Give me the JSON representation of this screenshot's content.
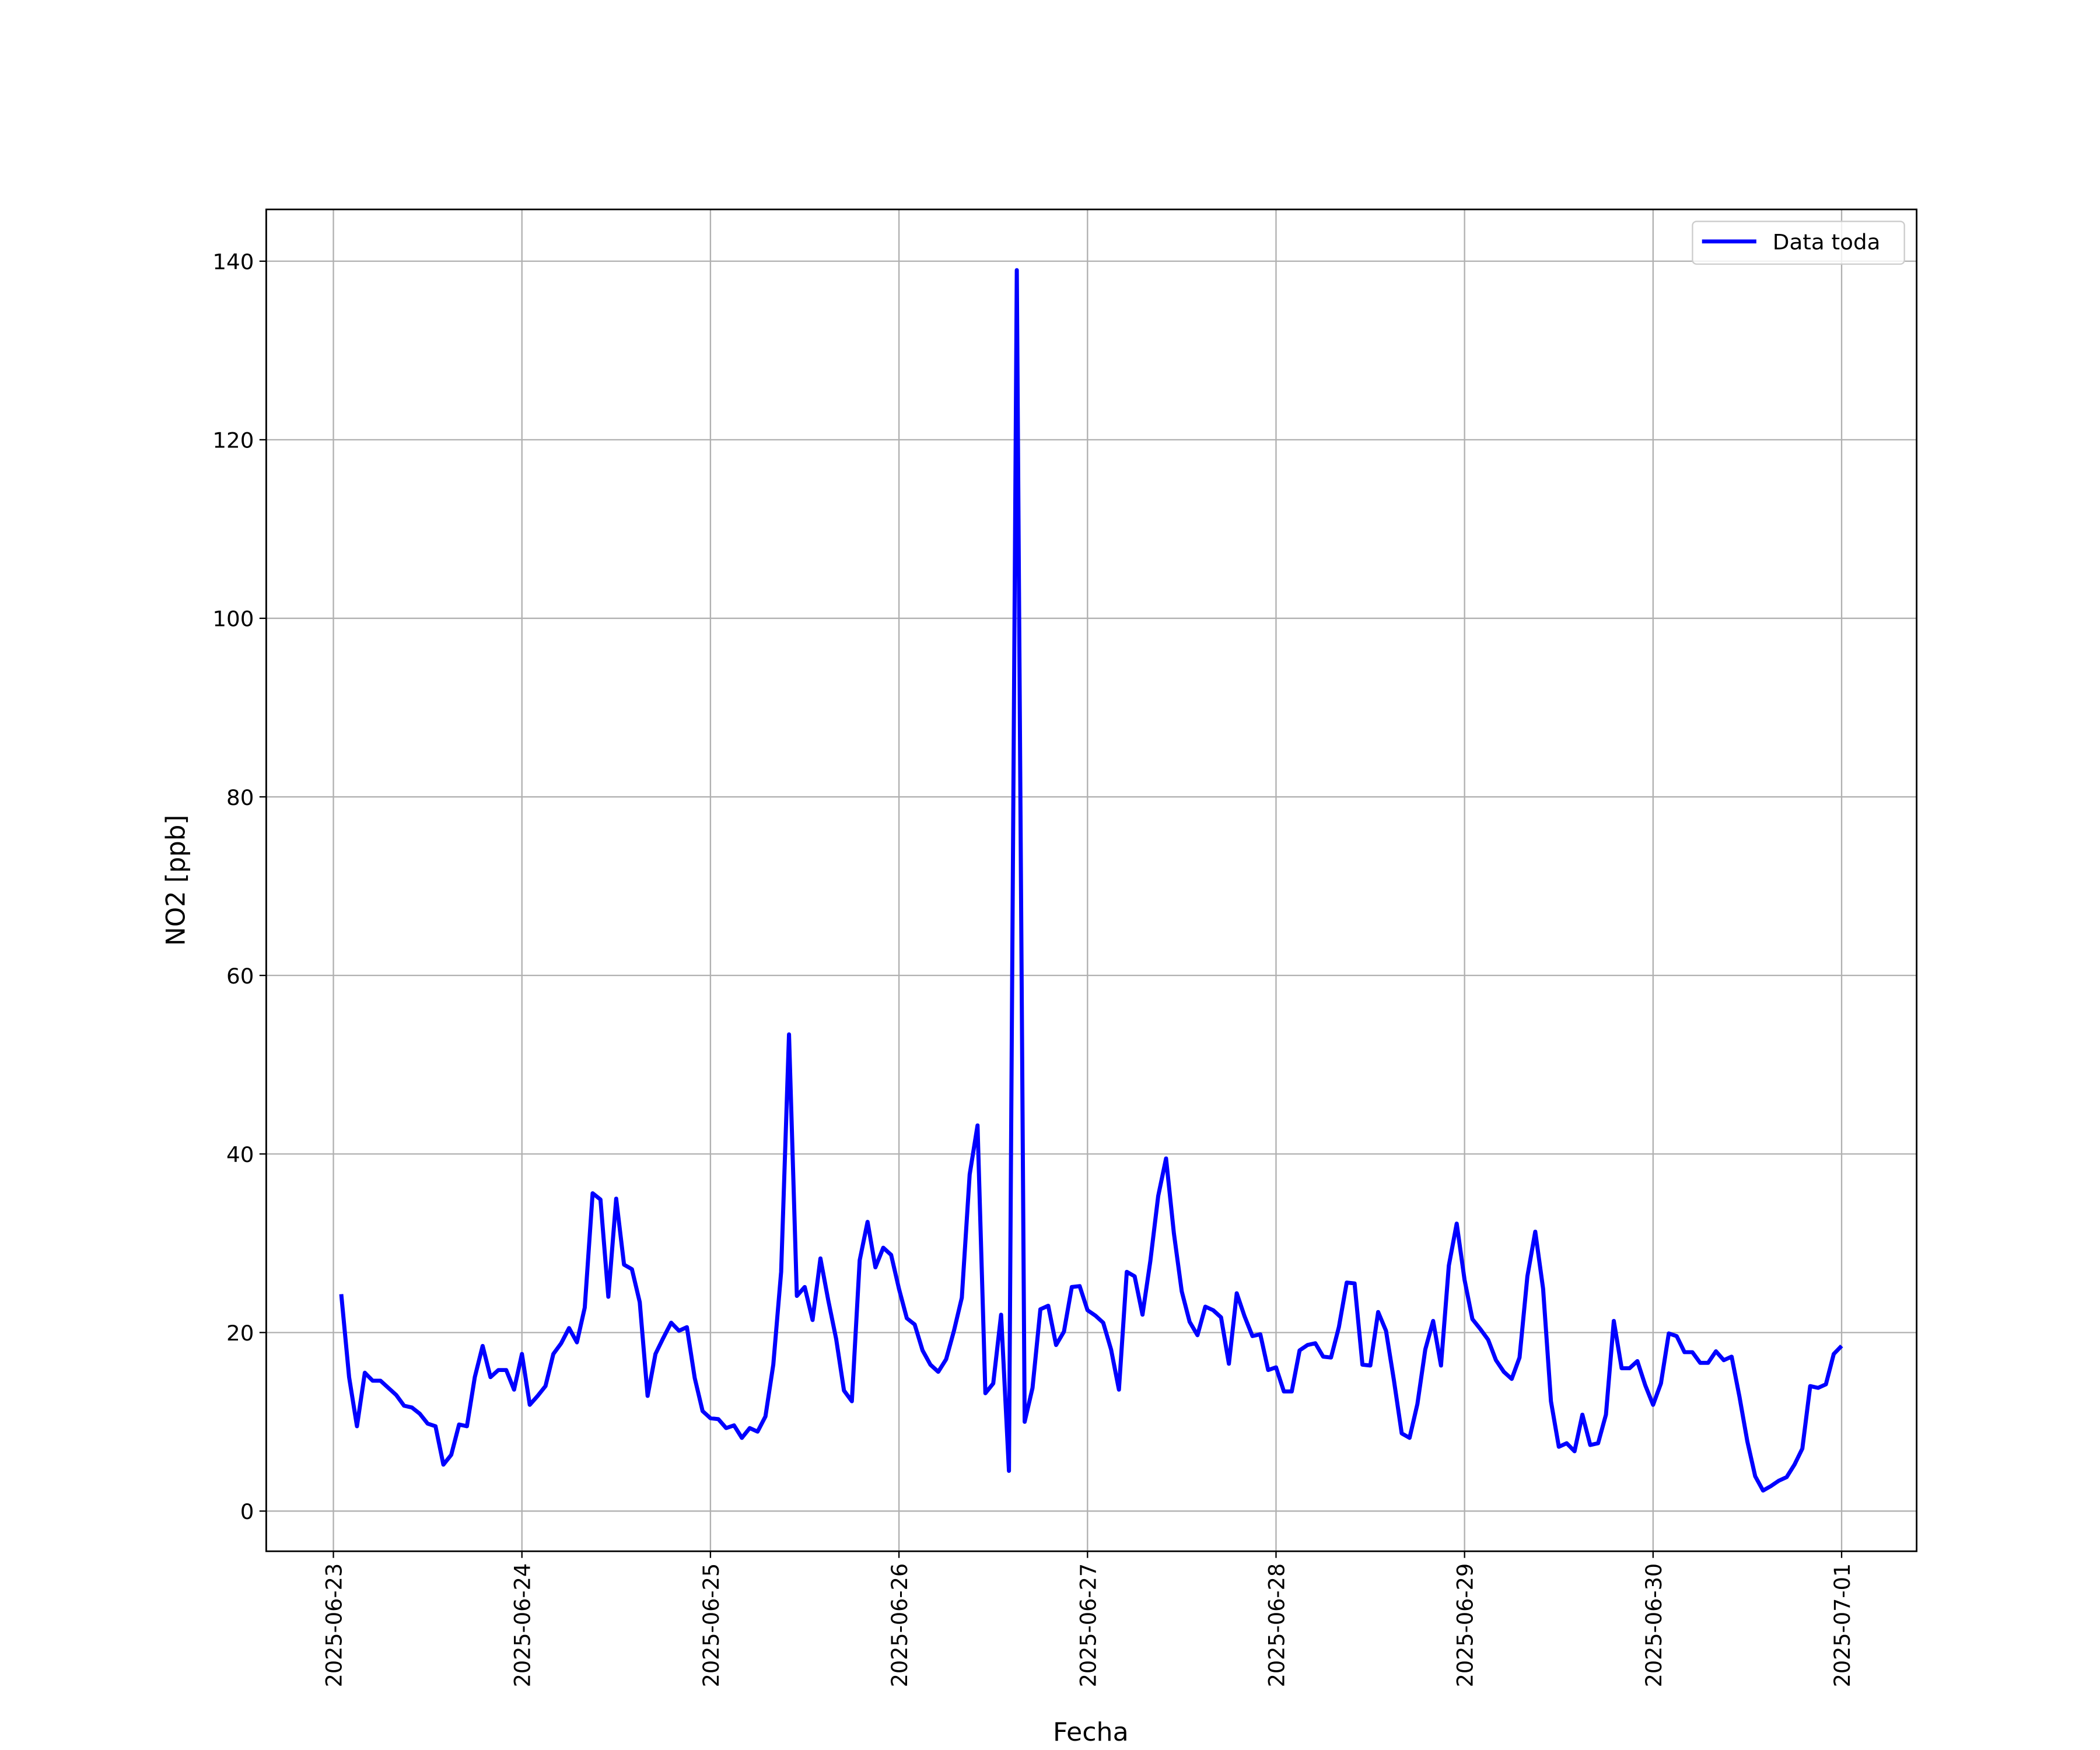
{
  "chart_data": {
    "type": "line",
    "xlabel": "Fecha",
    "ylabel": "NO2 [ppb]",
    "x": [
      "2025-06-23 01:00",
      "2025-06-23 02:00",
      "2025-06-23 03:00",
      "2025-06-23 04:00",
      "2025-06-23 05:00",
      "2025-06-23 06:00",
      "2025-06-23 07:00",
      "2025-06-23 08:00",
      "2025-06-23 09:00",
      "2025-06-23 10:00",
      "2025-06-23 11:00",
      "2025-06-23 12:00",
      "2025-06-23 13:00",
      "2025-06-23 14:00",
      "2025-06-23 15:00",
      "2025-06-23 16:00",
      "2025-06-23 17:00",
      "2025-06-23 18:00",
      "2025-06-23 19:00",
      "2025-06-23 20:00",
      "2025-06-23 21:00",
      "2025-06-23 22:00",
      "2025-06-23 23:00",
      "2025-06-24 00:00",
      "2025-06-24 01:00",
      "2025-06-24 02:00",
      "2025-06-24 03:00",
      "2025-06-24 04:00",
      "2025-06-24 05:00",
      "2025-06-24 06:00",
      "2025-06-24 07:00",
      "2025-06-24 08:00",
      "2025-06-24 09:00",
      "2025-06-24 10:00",
      "2025-06-24 11:00",
      "2025-06-24 12:00",
      "2025-06-24 13:00",
      "2025-06-24 14:00",
      "2025-06-24 15:00",
      "2025-06-24 16:00",
      "2025-06-24 17:00",
      "2025-06-24 18:00",
      "2025-06-24 19:00",
      "2025-06-24 20:00",
      "2025-06-24 21:00",
      "2025-06-24 22:00",
      "2025-06-24 23:00",
      "2025-06-25 00:00",
      "2025-06-25 01:00",
      "2025-06-25 02:00",
      "2025-06-25 03:00",
      "2025-06-25 04:00",
      "2025-06-25 05:00",
      "2025-06-25 06:00",
      "2025-06-25 07:00",
      "2025-06-25 08:00",
      "2025-06-25 09:00",
      "2025-06-25 10:00",
      "2025-06-25 11:00",
      "2025-06-25 12:00",
      "2025-06-25 13:00",
      "2025-06-25 14:00",
      "2025-06-25 15:00",
      "2025-06-25 16:00",
      "2025-06-25 17:00",
      "2025-06-25 18:00",
      "2025-06-25 19:00",
      "2025-06-25 20:00",
      "2025-06-25 21:00",
      "2025-06-25 22:00",
      "2025-06-25 23:00",
      "2025-06-26 00:00",
      "2025-06-26 01:00",
      "2025-06-26 02:00",
      "2025-06-26 03:00",
      "2025-06-26 04:00",
      "2025-06-26 05:00",
      "2025-06-26 06:00",
      "2025-06-26 07:00",
      "2025-06-26 08:00",
      "2025-06-26 09:00",
      "2025-06-26 10:00",
      "2025-06-26 11:00",
      "2025-06-26 12:00",
      "2025-06-26 13:00",
      "2025-06-26 14:00",
      "2025-06-26 15:00",
      "2025-06-26 16:00",
      "2025-06-26 17:00",
      "2025-06-26 18:00",
      "2025-06-26 19:00",
      "2025-06-26 20:00",
      "2025-06-26 21:00",
      "2025-06-26 22:00",
      "2025-06-26 23:00",
      "2025-06-27 00:00",
      "2025-06-27 01:00",
      "2025-06-27 02:00",
      "2025-06-27 03:00",
      "2025-06-27 04:00",
      "2025-06-27 05:00",
      "2025-06-27 06:00",
      "2025-06-27 07:00",
      "2025-06-27 08:00",
      "2025-06-27 09:00",
      "2025-06-27 10:00",
      "2025-06-27 11:00",
      "2025-06-27 12:00",
      "2025-06-27 13:00",
      "2025-06-27 14:00",
      "2025-06-27 15:00",
      "2025-06-27 16:00",
      "2025-06-27 17:00",
      "2025-06-27 18:00",
      "2025-06-27 19:00",
      "2025-06-27 20:00",
      "2025-06-27 21:00",
      "2025-06-27 22:00",
      "2025-06-27 23:00",
      "2025-06-28 00:00",
      "2025-06-28 01:00",
      "2025-06-28 02:00",
      "2025-06-28 03:00",
      "2025-06-28 04:00",
      "2025-06-28 05:00",
      "2025-06-28 06:00",
      "2025-06-28 07:00",
      "2025-06-28 08:00",
      "2025-06-28 09:00",
      "2025-06-28 10:00",
      "2025-06-28 11:00",
      "2025-06-28 12:00",
      "2025-06-28 13:00",
      "2025-06-28 14:00",
      "2025-06-28 15:00",
      "2025-06-28 16:00",
      "2025-06-28 17:00",
      "2025-06-28 18:00",
      "2025-06-28 19:00",
      "2025-06-28 20:00",
      "2025-06-28 21:00",
      "2025-06-28 22:00",
      "2025-06-28 23:00",
      "2025-06-29 00:00",
      "2025-06-29 01:00",
      "2025-06-29 02:00",
      "2025-06-29 03:00",
      "2025-06-29 04:00",
      "2025-06-29 05:00",
      "2025-06-29 06:00",
      "2025-06-29 07:00",
      "2025-06-29 08:00",
      "2025-06-29 09:00",
      "2025-06-29 10:00",
      "2025-06-29 11:00",
      "2025-06-29 12:00",
      "2025-06-29 13:00",
      "2025-06-29 14:00",
      "2025-06-29 15:00",
      "2025-06-29 16:00",
      "2025-06-29 17:00",
      "2025-06-29 18:00",
      "2025-06-29 19:00",
      "2025-06-29 20:00",
      "2025-06-29 21:00",
      "2025-06-29 22:00",
      "2025-06-29 23:00",
      "2025-06-30 00:00",
      "2025-06-30 01:00",
      "2025-06-30 02:00",
      "2025-06-30 03:00",
      "2025-06-30 04:00",
      "2025-06-30 05:00",
      "2025-06-30 06:00",
      "2025-06-30 07:00",
      "2025-06-30 08:00",
      "2025-06-30 09:00",
      "2025-06-30 10:00",
      "2025-06-30 11:00",
      "2025-06-30 12:00",
      "2025-06-30 13:00",
      "2025-06-30 14:00",
      "2025-06-30 15:00",
      "2025-06-30 16:00",
      "2025-06-30 17:00",
      "2025-06-30 18:00",
      "2025-06-30 19:00",
      "2025-06-30 20:00",
      "2025-06-30 21:00",
      "2025-06-30 22:00",
      "2025-06-30 23:00",
      "2025-07-01 00:00"
    ],
    "series": [
      {
        "name": "Data toda",
        "color": "#0000ff",
        "values": [
          24.3,
          15,
          9.5,
          15.5,
          14.6,
          14.6,
          13.8,
          13.0,
          11.8,
          11.6,
          10.9,
          9.8,
          9.5,
          5.2,
          6.3,
          9.7,
          9.5,
          15.0,
          18.5,
          15.0,
          15.8,
          15.8,
          13.6,
          17.6,
          11.9,
          12.9,
          14.0,
          17.6,
          18.8,
          20.5,
          18.9,
          22.8,
          35.6,
          34.9,
          24.0,
          35.0,
          27.6,
          27.1,
          23.4,
          12.9,
          17.6,
          19.4,
          21.1,
          20.2,
          20.6,
          14.9,
          11.2,
          10.4,
          10.3,
          9.3,
          9.6,
          8.2,
          9.3,
          8.9,
          10.6,
          16.4,
          26.8,
          53.4,
          24.1,
          25.1,
          21.4,
          28.3,
          23.6,
          19.3,
          13.5,
          12.3,
          28.1,
          32.4,
          27.3,
          29.5,
          28.7,
          24.9,
          21.6,
          20.9,
          18.0,
          16.4,
          15.6,
          17.0,
          20.2,
          23.9,
          37.7,
          43.2,
          13.2,
          14.3,
          22.0,
          4.5,
          139,
          10.0,
          13.8,
          22.6,
          23.0,
          18.6,
          20.1,
          25.1,
          25.2,
          22.5,
          21.9,
          21.1,
          18.1,
          13.6,
          26.8,
          26.3,
          22.0,
          28.0,
          35.3,
          39.5,
          31.1,
          24.6,
          21.2,
          19.7,
          22.9,
          22.5,
          21.7,
          16.5,
          24.4,
          21.8,
          19.6,
          19.8,
          15.8,
          16.1,
          13.4,
          13.4,
          18.0,
          18.6,
          18.8,
          17.3,
          17.2,
          20.6,
          25.6,
          25.5,
          16.4,
          16.3,
          22.3,
          20.2,
          14.7,
          8.7,
          8.2,
          12.0,
          18.1,
          21.3,
          16.3,
          27.5,
          32.2,
          25.9,
          21.5,
          20.4,
          19.2,
          16.9,
          15.6,
          14.8,
          17.2,
          26.3,
          31.3,
          24.9,
          12.3,
          7.2,
          7.6,
          6.7,
          10.8,
          7.4,
          7.6,
          10.8,
          21.3,
          16.0,
          16.0,
          16.8,
          14.1,
          11.9,
          14.3,
          19.9,
          19.6,
          17.8,
          17.8,
          16.6,
          16.6,
          17.9,
          16.9,
          17.3,
          12.8,
          7.8,
          3.9,
          2.3,
          2.8,
          3.4,
          3.8,
          5.2,
          7.0,
          14.0,
          13.8,
          14.2,
          17.6,
          18.5
        ]
      }
    ],
    "xlim": [
      "2025-06-22 15:27",
      "2025-07-01 09:33"
    ],
    "xticks": [
      "2025-06-23",
      "2025-06-24",
      "2025-06-25",
      "2025-06-26",
      "2025-06-27",
      "2025-06-28",
      "2025-06-29",
      "2025-06-30",
      "2025-07-01"
    ],
    "ylim": [
      -4.5,
      145.8
    ],
    "yticks": [
      0,
      20,
      40,
      60,
      80,
      100,
      120,
      140
    ],
    "grid": true,
    "legend": "upper right"
  }
}
